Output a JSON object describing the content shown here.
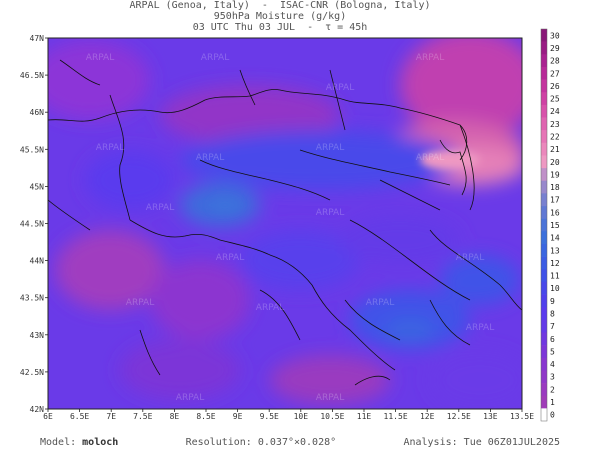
{
  "header": {
    "line1": "ARPAL (Genoa, Italy)  -  ISAC-CNR (Bologna, Italy)",
    "line2": "950hPa Moisture (g/kg)",
    "line3": "03 UTC Thu 03 JUL  -  τ = 45h"
  },
  "map": {
    "lon_labels": [
      "6E",
      "6.5E",
      "7E",
      "7.5E",
      "8E",
      "8.5E",
      "9E",
      "9.5E",
      "10E",
      "10.5E",
      "11E",
      "11.5E",
      "12E",
      "12.5E",
      "13E",
      "13.5E"
    ],
    "lat_labels": [
      "47N",
      "46.5N",
      "46N",
      "45.5N",
      "45N",
      "44.5N",
      "44N",
      "43.5N",
      "43N",
      "42.5N",
      "42N"
    ],
    "watermark": "ARPAL",
    "colorbar": {
      "values": [
        "30",
        "29",
        "28",
        "27",
        "26",
        "25",
        "24",
        "23",
        "22",
        "21",
        "20",
        "19",
        "18",
        "17",
        "16",
        "15",
        "14",
        "13",
        "12",
        "11",
        "10",
        "9",
        "8",
        "7",
        "6",
        "5",
        "4",
        "3",
        "2",
        "1",
        "0"
      ],
      "colors": [
        "#8a1878",
        "#9a1c84",
        "#aa2290",
        "#b82a98",
        "#c4359e",
        "#cf42a4",
        "#d852aa",
        "#df64b0",
        "#e676b6",
        "#eb88bc",
        "#ee98c2",
        "#c090c8",
        "#9888cc",
        "#7880d0",
        "#6078d4",
        "#4c74d8",
        "#3c70dc",
        "#3a66e0",
        "#3c5ce4",
        "#4052e8",
        "#4848ea",
        "#5040ec",
        "#5a3aee",
        "#643ae8",
        "#7038e0",
        "#7c36d8",
        "#8836d0",
        "#9038c8",
        "#9a3ac0",
        "#a03cb8",
        "#ffffff"
      ]
    }
  },
  "footer": {
    "model_label": "Model:",
    "model_value": "moloch",
    "resolution_label": "Resolution:",
    "resolution_value": "0.037°×0.028°",
    "analysis_label": "Analysis:",
    "analysis_value": "Tue 06Z01JUL2025"
  }
}
